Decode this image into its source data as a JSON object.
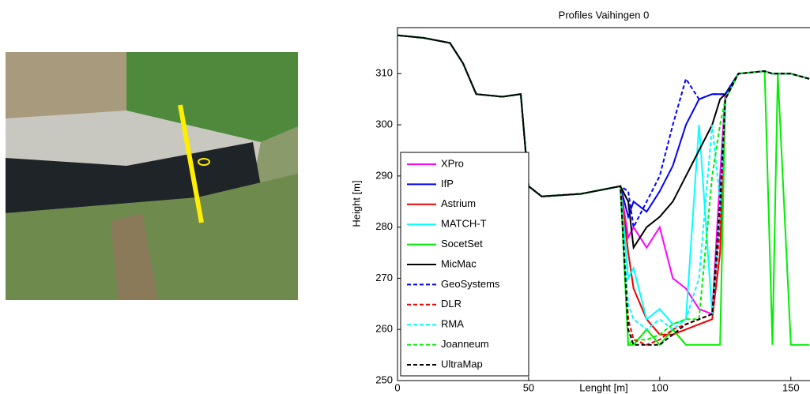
{
  "chart_data": {
    "type": "line",
    "title": "Profiles Vaihingen 0",
    "x_label": "Lenght [m]",
    "y_label": "Height [m]",
    "x": [
      0,
      10,
      20,
      25,
      30,
      40,
      47,
      50,
      55,
      70,
      85,
      88,
      90,
      95,
      100,
      105,
      110,
      115,
      120,
      123,
      125,
      130,
      140,
      143,
      145,
      150,
      157
    ],
    "xlim": [
      0,
      157
    ],
    "ylim": [
      250,
      319
    ],
    "xticks": [
      0,
      50,
      100,
      150
    ],
    "yticks": [
      250,
      260,
      270,
      280,
      290,
      300,
      310
    ],
    "series": [
      {
        "name": "XPro",
        "color": "#ff00ff",
        "dashed": false,
        "values": [
          317.5,
          317,
          316,
          312,
          306,
          305.5,
          306,
          288,
          286,
          286.5,
          288,
          278,
          280,
          276,
          280,
          270,
          268,
          264,
          263,
          290,
          306,
          310,
          310.5,
          310,
          310,
          310,
          309
        ]
      },
      {
        "name": "IfP",
        "color": "#0000ff",
        "dashed": false,
        "values": [
          317.5,
          317,
          316,
          312,
          306,
          305.5,
          306,
          288,
          286,
          286.5,
          288,
          282,
          285,
          283,
          287,
          292,
          300,
          305,
          306,
          306,
          306,
          310,
          310.5,
          310,
          310,
          310,
          309
        ]
      },
      {
        "name": "Astrium",
        "color": "#ee0000",
        "dashed": false,
        "values": [
          317.5,
          317,
          316,
          312,
          306,
          305.5,
          306,
          288,
          286,
          286.5,
          288,
          275,
          268,
          262,
          259,
          259,
          260,
          261,
          262,
          275,
          305,
          310,
          310.5,
          310,
          310,
          310,
          309
        ]
      },
      {
        "name": "MATCH-T",
        "color": "#00ffff",
        "dashed": false,
        "values": [
          317.5,
          317,
          316,
          312,
          306,
          305.5,
          306,
          288,
          286,
          286.5,
          288,
          270,
          272,
          262,
          264,
          261,
          262,
          300,
          263,
          282,
          305,
          310,
          310.5,
          310,
          310,
          310,
          309
        ]
      },
      {
        "name": "SocetSet",
        "color": "#00ee00",
        "dashed": false,
        "values": [
          317.5,
          317,
          316,
          312,
          306,
          305.5,
          306,
          288,
          286,
          286.5,
          288,
          257,
          257,
          260,
          257,
          260,
          257,
          257,
          257,
          257,
          305,
          310,
          310.5,
          257,
          310,
          257,
          257
        ]
      },
      {
        "name": "MicMac",
        "color": "#000000",
        "dashed": false,
        "values": [
          317.5,
          317,
          316,
          312,
          306,
          305.5,
          306,
          288,
          286,
          286.5,
          288,
          285,
          276,
          280,
          282,
          285,
          290,
          295,
          300,
          305,
          306,
          310,
          310.5,
          310,
          310,
          310,
          309
        ]
      },
      {
        "name": "GeoSystems",
        "color": "#0000ff",
        "dashed": true,
        "values": [
          317.5,
          317,
          316,
          312,
          306,
          305.5,
          306,
          288,
          286,
          286.5,
          288,
          287,
          280,
          285,
          290,
          300,
          309,
          305,
          306,
          306,
          306,
          310,
          310.5,
          310,
          310,
          310,
          309
        ]
      },
      {
        "name": "DLR",
        "color": "#ee0000",
        "dashed": true,
        "values": [
          317.5,
          317,
          316,
          312,
          306,
          305.5,
          306,
          288,
          286,
          286.5,
          288,
          262,
          258,
          257,
          258,
          260,
          261,
          262,
          263,
          280,
          305,
          310,
          310.5,
          310,
          310,
          310,
          309
        ]
      },
      {
        "name": "RMA",
        "color": "#00ffff",
        "dashed": true,
        "values": [
          317.5,
          317,
          316,
          312,
          306,
          305.5,
          306,
          288,
          286,
          286.5,
          288,
          265,
          262,
          260,
          262,
          260,
          262,
          270,
          300,
          285,
          305,
          310,
          310.5,
          310,
          310,
          310,
          309
        ]
      },
      {
        "name": "Joanneum",
        "color": "#00ee00",
        "dashed": true,
        "values": [
          317.5,
          317,
          316,
          312,
          306,
          305.5,
          306,
          288,
          286,
          286.5,
          288,
          257,
          258,
          258,
          259,
          261,
          262,
          262,
          290,
          300,
          305,
          310,
          310.5,
          310,
          310,
          310,
          309
        ]
      },
      {
        "name": "UltraMap",
        "color": "#000000",
        "dashed": true,
        "values": [
          317.5,
          317,
          316,
          312,
          306,
          305.5,
          306,
          288,
          286,
          286.5,
          288,
          260,
          257,
          257,
          257,
          259,
          261,
          262,
          263,
          285,
          305,
          310,
          310.5,
          310,
          310,
          310,
          309
        ]
      }
    ]
  }
}
